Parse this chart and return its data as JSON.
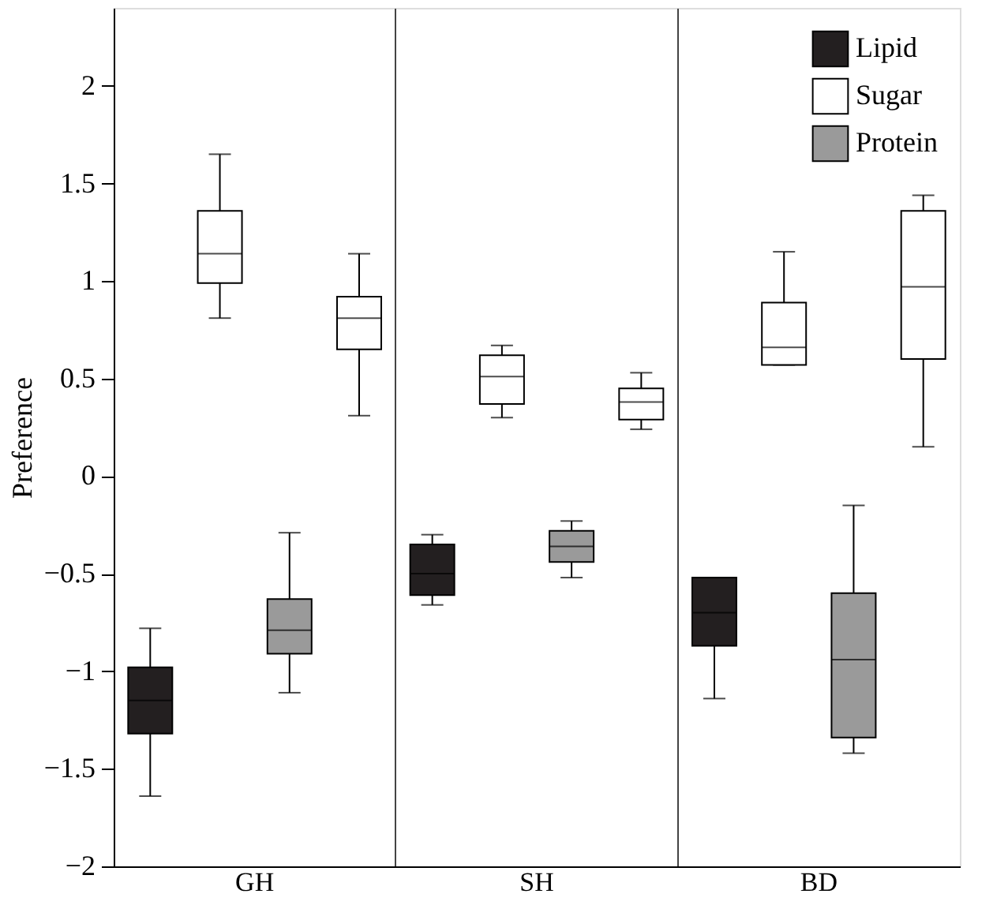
{
  "chart_data": {
    "type": "box",
    "ylabel": "Preference",
    "categories": [
      "GH",
      "SH",
      "BD"
    ],
    "ylim": [
      -2,
      2.4
    ],
    "yticks": [
      {
        "value": -2,
        "label": "−2"
      },
      {
        "value": -1.5,
        "label": "−1.5"
      },
      {
        "value": -1,
        "label": "−1"
      },
      {
        "value": -0.5,
        "label": "−0.5"
      },
      0,
      0.5,
      1,
      1.5,
      2
    ],
    "grid": "x",
    "legend": "top right",
    "series": [
      {
        "name": "Lipid",
        "color": "#231f20",
        "boxes": [
          {
            "low": -1.64,
            "q1": -1.32,
            "median": -1.15,
            "q3": -0.98,
            "high": -0.78
          },
          {
            "low": -0.66,
            "q1": -0.61,
            "median": -0.5,
            "q3": -0.35,
            "high": -0.3
          },
          {
            "low": -1.14,
            "q1": -0.87,
            "median": -0.7,
            "q3": -0.52,
            "high": -0.52
          }
        ]
      },
      {
        "name": "Sugar",
        "color": "#ffffff",
        "boxes": [
          {
            "low": 0.81,
            "q1": 0.99,
            "median": 1.14,
            "q3": 1.36,
            "high": 1.65
          },
          {
            "low": 0.3,
            "q1": 0.37,
            "median": 0.51,
            "q3": 0.62,
            "high": 0.67
          },
          {
            "low": 0.57,
            "q1": 0.57,
            "median": 0.66,
            "q3": 0.89,
            "high": 1.15
          }
        ]
      },
      {
        "name": "Protein",
        "color": "#9a9a9a",
        "boxes": [
          {
            "low": -1.11,
            "q1": -0.91,
            "median": -0.79,
            "q3": -0.63,
            "high": -0.29
          },
          {
            "low": -0.52,
            "q1": -0.44,
            "median": -0.36,
            "q3": -0.28,
            "high": -0.23
          },
          {
            "low": -1.42,
            "q1": -1.34,
            "median": -0.94,
            "q3": -0.6,
            "high": -0.15
          }
        ]
      },
      {
        "color": "#ffffff",
        "boxes": [
          {
            "low": 0.31,
            "q1": 0.65,
            "median": 0.81,
            "q3": 0.92,
            "high": 1.14
          },
          {
            "low": 0.24,
            "q1": 0.29,
            "median": 0.38,
            "q3": 0.45,
            "high": 0.53
          },
          {
            "low": 0.15,
            "q1": 0.6,
            "median": 0.97,
            "q3": 1.36,
            "high": 1.44
          }
        ]
      }
    ]
  }
}
